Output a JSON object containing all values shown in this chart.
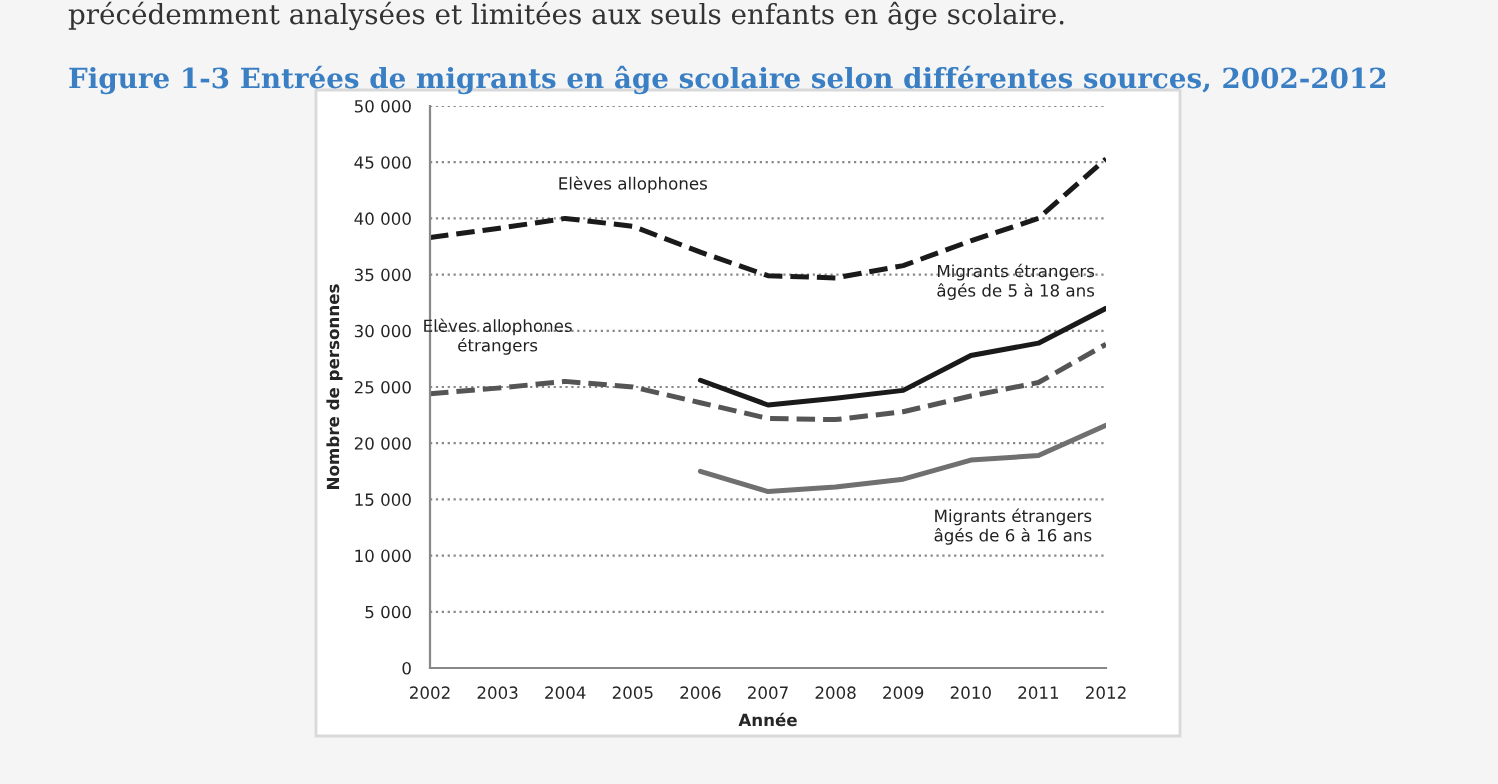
{
  "chart_data": {
    "type": "line",
    "title": "Figure 1-3 Entrées de migrants en âge scolaire selon différentes sources, 2002-2012",
    "annotations": [
      "précédemment analysées et limitées aux seuls enfants en âge scolaire."
    ],
    "xlabel": "Année",
    "ylabel": "Nombre de personnes",
    "x": [
      2002,
      2003,
      2004,
      2005,
      2006,
      2007,
      2008,
      2009,
      2010,
      2011,
      2012
    ],
    "series": [
      {
        "name": "Elèves allophones",
        "color": "#1a1a1a",
        "line_style": "dashed",
        "values": [
          38300,
          39100,
          40000,
          39300,
          37000,
          34900,
          34700,
          35800,
          38000,
          40000,
          45300
        ]
      },
      {
        "name": "Elèves allophones étrangers",
        "color": "#555555",
        "line_style": "dashed",
        "values": [
          24400,
          24900,
          25500,
          25000,
          23600,
          22200,
          22100,
          22800,
          24200,
          25400,
          28800
        ]
      },
      {
        "name": "Migrants étrangers âgés de 5 à 18 ans",
        "color": "#1a1a1a",
        "line_style": "solid",
        "values": [
          null,
          null,
          null,
          null,
          25600,
          23400,
          24000,
          24700,
          27800,
          28900,
          32000
        ]
      },
      {
        "name": "Migrants étrangers âgés de 6 à 16 ans",
        "color": "#707070",
        "line_style": "solid",
        "values": [
          null,
          null,
          null,
          null,
          17500,
          15700,
          16100,
          16800,
          18500,
          18900,
          21600
        ]
      }
    ],
    "xlim": [
      2002,
      2012
    ],
    "xticks": [
      2002,
      2003,
      2004,
      2005,
      2006,
      2007,
      2008,
      2009,
      2010,
      2011,
      2012
    ],
    "ylim": [
      0,
      50000
    ],
    "yticks": [
      0,
      {
        "value": 5000,
        "label": "5 000"
      },
      {
        "value": 10000,
        "label": "10 000"
      },
      {
        "value": 15000,
        "label": "15 000"
      },
      {
        "value": 20000,
        "label": "20 000"
      },
      {
        "value": 25000,
        "label": "25 000"
      },
      {
        "value": 30000,
        "label": "30 000"
      },
      {
        "value": 35000,
        "label": "35 000"
      },
      {
        "value": 40000,
        "label": "40 000"
      },
      {
        "value": 45000,
        "label": "45 000"
      },
      {
        "value": 50000,
        "label": "50 000"
      }
    ],
    "grid": "y",
    "legend": false,
    "marker": "none"
  }
}
